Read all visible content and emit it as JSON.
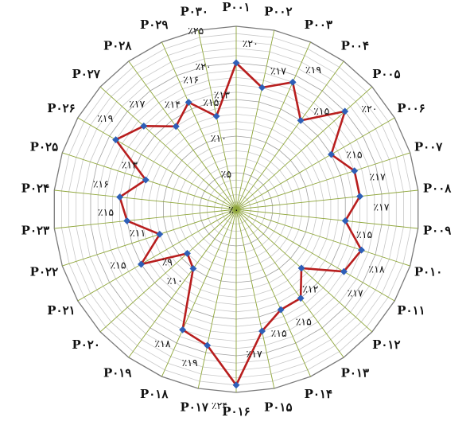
{
  "chart_data": {
    "type": "radar",
    "categories": [
      "P۰۰۱",
      "P۰۰۲",
      "P۰۰۳",
      "P۰۰۴",
      "P۰۰۵",
      "P۰۰۶",
      "P۰۰۷",
      "P۰۰۸",
      "P۰۰۹",
      "P۰۱۰",
      "P۰۱۱",
      "P۰۱۲",
      "P۰۱۳",
      "P۰۱۴",
      "P۰۱۵",
      "P۰۱۶",
      "P۰۱۷",
      "P۰۱۸",
      "P۰۱۹",
      "P۰۲۰",
      "P۰۲۱",
      "P۰۲۲",
      "P۰۲۳",
      "P۰۲۴",
      "P۰۲۵",
      "P۰۲۶",
      "P۰۲۷",
      "P۰۲۸",
      "P۰۲۹",
      "P۰۳۰"
    ],
    "values": [
      20,
      17,
      19,
      15,
      20,
      15,
      17,
      17,
      15,
      18,
      17,
      12,
      15,
      15,
      17,
      24,
      19,
      18,
      10,
      9,
      15,
      11,
      15,
      16,
      13,
      19,
      17,
      14,
      16,
      13
    ],
    "value_labels": [
      "٪۲۰",
      "٪۱۷",
      "٪۱۹",
      "٪۱۵",
      "٪۲۰",
      "٪۱۵",
      "٪۱۷",
      "٪۱۷",
      "٪۱۵",
      "٪۱۸",
      "٪۱۷",
      "٪۱۲",
      "٪۱۵",
      "٪۱۵",
      "٪۱۷",
      "٪۲۴",
      "٪۱۹",
      "٪۱۸",
      "٪۱۰",
      "٪۹",
      "٪۱۵",
      "٪۱۱",
      "٪۱۵",
      "٪۱۶",
      "٪۱۳",
      "٪۱۹",
      "٪۱۷",
      "٪۱۴",
      "٪۱۶",
      "٪۱۳"
    ],
    "scale_ticks": [
      {
        "value": 0,
        "label": "٪۰"
      },
      {
        "value": 5,
        "label": "٪۵"
      },
      {
        "value": 10,
        "label": "٪۱۰"
      },
      {
        "value": 15,
        "label": "٪۱۵"
      },
      {
        "value": 20,
        "label": "٪۲۰"
      },
      {
        "value": 25,
        "label": "٪۲۵"
      }
    ],
    "rmax": 25,
    "ring_step": 1,
    "grid": true,
    "colors": {
      "line": "#b81e1e",
      "marker": "#2e5fb8",
      "spoke": "#8fa63a",
      "ring": "#c8c8c8",
      "ring_major": "#a0a0a0",
      "outer": "#7a7a7a"
    }
  }
}
